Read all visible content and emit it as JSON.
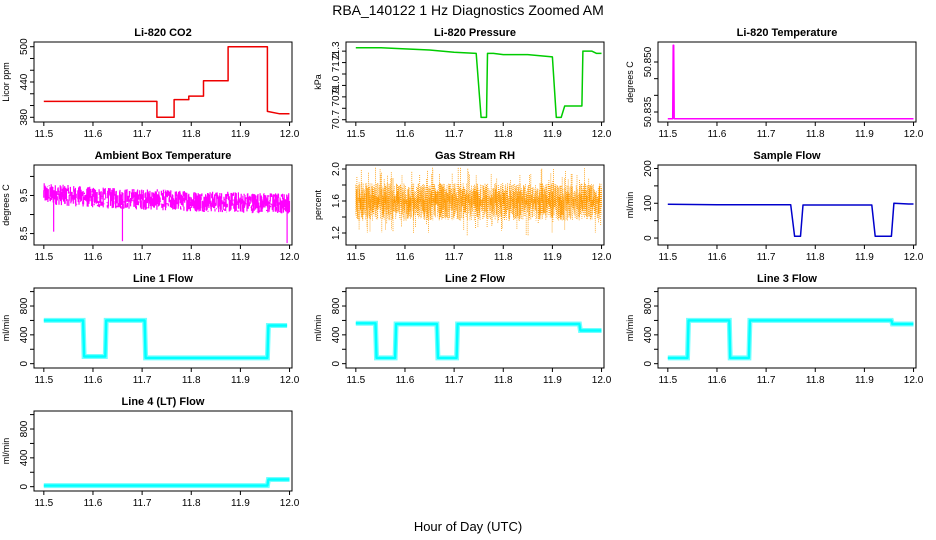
{
  "title": "RBA_140122  1 Hz Diagnostics Zoomed AM",
  "xlabel": "Hour of Day (UTC)",
  "chart_data": [
    {
      "type": "line",
      "title": "Li-820 CO2",
      "ylabel": "Licor ppm",
      "color": "#ee0000",
      "xlim": [
        11.48,
        12.005
      ],
      "ylim": [
        372,
        508
      ],
      "xticks": [
        "11.5",
        "11.6",
        "11.7",
        "11.8",
        "11.9",
        "12.0"
      ],
      "yticks": [
        380,
        400,
        420,
        440,
        460,
        480,
        500
      ],
      "ytick_labels": [
        "380",
        "",
        "",
        "440",
        "",
        "",
        "500"
      ],
      "series": [
        {
          "x": [
            11.5,
            11.6,
            11.73,
            11.73,
            11.765,
            11.765,
            11.795,
            11.795,
            11.825,
            11.825,
            11.84,
            11.84,
            11.875,
            11.875,
            11.955,
            11.955,
            11.98,
            11.99,
            12.0
          ],
          "y": [
            407,
            407,
            407,
            380,
            380,
            410,
            410,
            416,
            416,
            442,
            442,
            442,
            442,
            500,
            500,
            390,
            386,
            386,
            386
          ]
        }
      ]
    },
    {
      "type": "line",
      "title": "Li-820 Pressure",
      "ylabel": "kPa",
      "color": "#00cc00",
      "xlim": [
        11.48,
        12.005
      ],
      "ylim": [
        70.68,
        71.38
      ],
      "xticks": [
        "11.5",
        "11.6",
        "11.7",
        "11.8",
        "11.9",
        "12.0"
      ],
      "yticks": [
        70.7,
        70.8,
        70.9,
        71.0,
        71.1,
        71.2,
        71.3
      ],
      "ytick_labels": [
        "70.7",
        "",
        "70.9",
        "71.0",
        "",
        "71.2",
        "71.3"
      ],
      "series": [
        {
          "x": [
            11.5,
            11.55,
            11.6,
            11.65,
            11.7,
            11.745,
            11.755,
            11.766,
            11.768,
            11.78,
            11.8,
            11.85,
            11.9,
            11.908,
            11.918,
            11.925,
            11.96,
            11.962,
            11.98,
            11.99,
            12.0
          ],
          "y": [
            71.33,
            71.33,
            71.32,
            71.31,
            71.29,
            71.28,
            70.72,
            70.72,
            71.28,
            71.28,
            71.27,
            71.27,
            71.25,
            70.72,
            70.72,
            70.82,
            70.82,
            71.3,
            71.3,
            71.28,
            71.28
          ]
        }
      ]
    },
    {
      "type": "line",
      "title": "Li-820 Temperature",
      "ylabel": "degrees C",
      "color": "#ff00ff",
      "xlim": [
        11.48,
        12.005
      ],
      "ylim": [
        50.832,
        50.856
      ],
      "xticks": [
        "11.5",
        "11.6",
        "11.7",
        "11.8",
        "11.9",
        "12.0"
      ],
      "yticks": [
        50.835,
        50.84,
        50.845,
        50.85
      ],
      "ytick_labels": [
        "50.835",
        "",
        "",
        "50.850"
      ],
      "series": [
        {
          "x": [
            11.5,
            11.51,
            11.511,
            11.512,
            11.513,
            12.0
          ],
          "y": [
            50.833,
            50.833,
            50.855,
            50.855,
            50.833,
            50.833
          ]
        }
      ]
    },
    {
      "type": "line",
      "title": "Ambient Box Temperature",
      "ylabel": "degrees C",
      "color": "#ff00ff",
      "xlim": [
        11.48,
        12.005
      ],
      "ylim": [
        8.2,
        10.3
      ],
      "xticks": [
        "11.5",
        "11.6",
        "11.7",
        "11.8",
        "11.9",
        "12.0"
      ],
      "yticks": [
        8.5,
        9.0,
        9.5,
        10.0
      ],
      "ytick_labels": [
        "8.5",
        "",
        "9.5",
        ""
      ],
      "series": [
        {
          "x": [
            11.5,
            11.55,
            11.6,
            11.65,
            11.7,
            11.75,
            11.8,
            11.85,
            11.9,
            11.95,
            12.0
          ],
          "y": [
            9.55,
            9.5,
            9.45,
            9.42,
            9.4,
            9.38,
            9.35,
            9.33,
            9.32,
            9.3,
            9.3
          ]
        }
      ]
    },
    {
      "type": "scatter",
      "title": "Gas Stream RH",
      "ylabel": "percent",
      "color": "#ff9900",
      "xlim": [
        11.48,
        12.005
      ],
      "ylim": [
        1.05,
        2.05
      ],
      "xticks": [
        "11.5",
        "11.6",
        "11.7",
        "11.8",
        "11.9",
        "12.0"
      ],
      "yticks": [
        1.2,
        1.4,
        1.6,
        1.8,
        2.0
      ],
      "ytick_labels": [
        "1.2",
        "",
        "1.6",
        "",
        "2.0"
      ],
      "series": [
        {
          "x": [
            11.5,
            11.6,
            11.7,
            11.8,
            11.9,
            12.0
          ],
          "y": [
            1.6,
            1.6,
            1.6,
            1.6,
            1.6,
            1.6
          ]
        }
      ]
    },
    {
      "type": "line",
      "title": "Sample Flow",
      "ylabel": "ml/min",
      "color": "#0000cc",
      "xlim": [
        11.48,
        12.005
      ],
      "ylim": [
        -20,
        210
      ],
      "xticks": [
        "11.5",
        "11.6",
        "11.7",
        "11.8",
        "11.9",
        "12.0"
      ],
      "yticks": [
        0,
        50,
        100,
        150,
        200
      ],
      "ytick_labels": [
        "0",
        "",
        "100",
        "",
        "200"
      ],
      "series": [
        {
          "x": [
            11.5,
            11.6,
            11.7,
            11.75,
            11.758,
            11.77,
            11.775,
            11.8,
            11.9,
            11.915,
            11.922,
            11.955,
            11.96,
            11.99,
            12.0
          ],
          "y": [
            97,
            96,
            96,
            96,
            5,
            5,
            95,
            95,
            95,
            95,
            5,
            5,
            100,
            98,
            98
          ]
        }
      ]
    },
    {
      "type": "line",
      "title": "Line 1 Flow",
      "ylabel": "ml/min",
      "color": "#00ffff",
      "xlim": [
        11.48,
        12.005
      ],
      "ylim": [
        -60,
        1050
      ],
      "xticks": [
        "11.5",
        "11.6",
        "11.7",
        "11.8",
        "11.9",
        "12.0"
      ],
      "yticks": [
        0,
        200,
        400,
        600,
        800,
        1000
      ],
      "ytick_labels": [
        "0",
        "",
        "400",
        "",
        "800",
        ""
      ],
      "series": [
        {
          "x": [
            11.5,
            11.58,
            11.582,
            11.625,
            11.627,
            11.705,
            11.707,
            11.955,
            11.957,
            11.995
          ],
          "y": [
            600,
            600,
            100,
            100,
            600,
            600,
            80,
            80,
            530,
            530
          ]
        }
      ]
    },
    {
      "type": "line",
      "title": "Line 2 Flow",
      "ylabel": "ml/min",
      "color": "#00ffff",
      "xlim": [
        11.48,
        12.005
      ],
      "ylim": [
        -60,
        1050
      ],
      "xticks": [
        "11.5",
        "11.6",
        "11.7",
        "11.8",
        "11.9",
        "12.0"
      ],
      "yticks": [
        0,
        200,
        400,
        600,
        800,
        1000
      ],
      "ytick_labels": [
        "0",
        "",
        "400",
        "",
        "800",
        ""
      ],
      "series": [
        {
          "x": [
            11.5,
            11.54,
            11.542,
            11.58,
            11.582,
            11.665,
            11.667,
            11.705,
            11.707,
            11.955,
            11.957,
            12.0
          ],
          "y": [
            560,
            560,
            80,
            80,
            550,
            550,
            80,
            80,
            550,
            550,
            460,
            460
          ]
        }
      ]
    },
    {
      "type": "line",
      "title": "Line 3 Flow",
      "ylabel": "ml/min",
      "color": "#00ffff",
      "xlim": [
        11.48,
        12.005
      ],
      "ylim": [
        -60,
        1050
      ],
      "xticks": [
        "11.5",
        "11.6",
        "11.7",
        "11.8",
        "11.9",
        "12.0"
      ],
      "yticks": [
        0,
        200,
        400,
        600,
        800,
        1000
      ],
      "ytick_labels": [
        "0",
        "",
        "400",
        "",
        "800",
        ""
      ],
      "series": [
        {
          "x": [
            11.5,
            11.54,
            11.542,
            11.625,
            11.627,
            11.665,
            11.667,
            11.955,
            11.957,
            12.0
          ],
          "y": [
            80,
            80,
            600,
            600,
            80,
            80,
            600,
            600,
            550,
            550
          ]
        }
      ]
    },
    {
      "type": "line",
      "title": "Line 4 (LT) Flow",
      "ylabel": "ml/min",
      "color": "#00ffff",
      "xlim": [
        11.48,
        12.005
      ],
      "ylim": [
        -60,
        1050
      ],
      "xticks": [
        "11.5",
        "11.6",
        "11.7",
        "11.8",
        "11.9",
        "12.0"
      ],
      "yticks": [
        0,
        200,
        400,
        600,
        800,
        1000
      ],
      "ytick_labels": [
        "0",
        "",
        "400",
        "",
        "800",
        ""
      ],
      "series": [
        {
          "x": [
            11.5,
            11.6,
            11.7,
            11.8,
            11.9,
            11.955,
            11.957,
            11.99,
            12.0
          ],
          "y": [
            15,
            15,
            15,
            15,
            15,
            15,
            100,
            100,
            100
          ]
        }
      ]
    }
  ]
}
